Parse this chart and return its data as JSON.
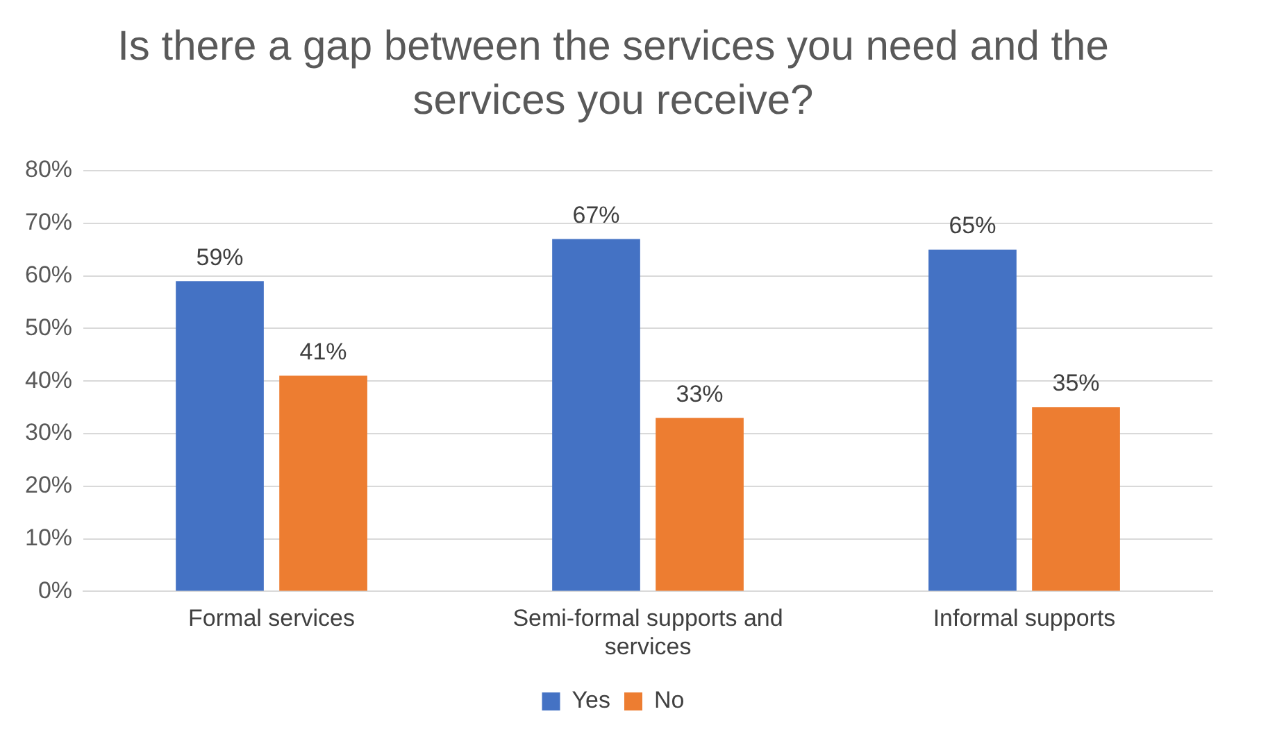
{
  "chart_data": {
    "type": "bar",
    "title": "Is there a gap between the services you need and the services you receive?",
    "categories": [
      "Formal services",
      "Semi-formal supports and services",
      "Informal supports"
    ],
    "series": [
      {
        "name": "Yes",
        "color": "#4472c4",
        "values": [
          59,
          67,
          65
        ],
        "value_labels": [
          "59%",
          "67%",
          "65%"
        ]
      },
      {
        "name": "No",
        "color": "#ed7d31",
        "values": [
          41,
          33,
          35
        ],
        "value_labels": [
          "41%",
          "33%",
          "35%"
        ]
      }
    ],
    "ylim": [
      0,
      80
    ],
    "yticks": [
      {
        "value": 0,
        "label": "0%"
      },
      {
        "value": 10,
        "label": "10%"
      },
      {
        "value": 20,
        "label": "20%"
      },
      {
        "value": 30,
        "label": "30%"
      },
      {
        "value": 40,
        "label": "40%"
      },
      {
        "value": 50,
        "label": "50%"
      },
      {
        "value": 60,
        "label": "60%"
      },
      {
        "value": 70,
        "label": "70%"
      },
      {
        "value": 80,
        "label": "80%"
      }
    ],
    "grid": "y",
    "legend": "bottom"
  }
}
